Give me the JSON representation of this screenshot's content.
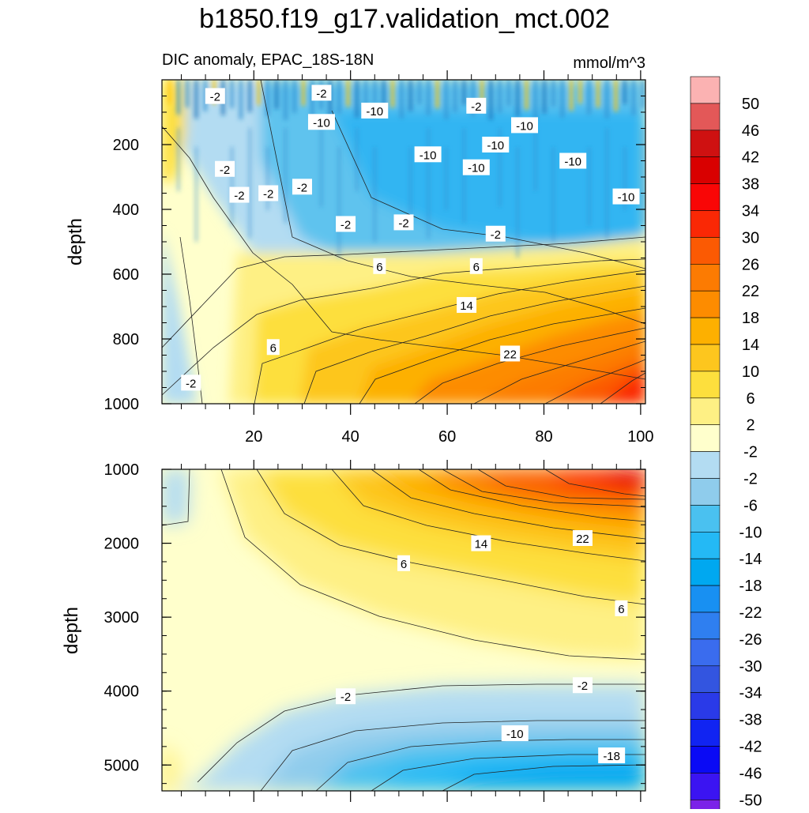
{
  "chart_data": [
    {
      "type": "heatmap",
      "title": "b1850.f19_g17.validation_mct.002",
      "subtitle_left": "DIC anomaly, EPAC_18S-18N",
      "subtitle_right": "mmol/m^3",
      "ylabel": "depth",
      "xlim": [
        1,
        101
      ],
      "ylim": [
        1000,
        0
      ],
      "x_ticks": [
        20,
        40,
        60,
        80,
        100
      ],
      "y_ticks": [
        200,
        400,
        600,
        800,
        1000
      ],
      "contour_labels": [
        {
          "text": "-2",
          "x": 12,
          "depth": 50
        },
        {
          "text": "-2",
          "x": 34,
          "depth": 40
        },
        {
          "text": "-10",
          "x": 34,
          "depth": 130
        },
        {
          "text": "-10",
          "x": 45,
          "depth": 95
        },
        {
          "text": "-2",
          "x": 66,
          "depth": 80
        },
        {
          "text": "-10",
          "x": 56,
          "depth": 230
        },
        {
          "text": "-10",
          "x": 66,
          "depth": 270
        },
        {
          "text": "-10",
          "x": 70,
          "depth": 200
        },
        {
          "text": "-10",
          "x": 76,
          "depth": 140
        },
        {
          "text": "-10",
          "x": 86,
          "depth": 250
        },
        {
          "text": "-10",
          "x": 97,
          "depth": 360
        },
        {
          "text": "-2",
          "x": 14,
          "depth": 275
        },
        {
          "text": "-2",
          "x": 17,
          "depth": 355
        },
        {
          "text": "-2",
          "x": 23,
          "depth": 350
        },
        {
          "text": "-2",
          "x": 30,
          "depth": 330
        },
        {
          "text": "-2",
          "x": 39,
          "depth": 445
        },
        {
          "text": "-2",
          "x": 51,
          "depth": 440
        },
        {
          "text": "-2",
          "x": 70,
          "depth": 475
        },
        {
          "text": "6",
          "x": 46,
          "depth": 575
        },
        {
          "text": "6",
          "x": 66,
          "depth": 575
        },
        {
          "text": "14",
          "x": 64,
          "depth": 695
        },
        {
          "text": "6",
          "x": 24,
          "depth": 825
        },
        {
          "text": "22",
          "x": 73,
          "depth": 845
        },
        {
          "text": "-2",
          "x": 7,
          "depth": 935
        }
      ]
    },
    {
      "type": "heatmap",
      "ylabel": "depth",
      "xlim": [
        1,
        101
      ],
      "ylim": [
        5350,
        1000
      ],
      "y_ticks": [
        1000,
        2000,
        3000,
        4000,
        5000
      ],
      "contour_labels": [
        {
          "text": "14",
          "x": 67,
          "depth": 2000
        },
        {
          "text": "22",
          "x": 88,
          "depth": 1930
        },
        {
          "text": "6",
          "x": 51,
          "depth": 2270
        },
        {
          "text": "6",
          "x": 96,
          "depth": 2880
        },
        {
          "text": "-2",
          "x": 39,
          "depth": 4070
        },
        {
          "text": "-2",
          "x": 88,
          "depth": 3920
        },
        {
          "text": "-10",
          "x": 74,
          "depth": 4570
        },
        {
          "text": "-18",
          "x": 94,
          "depth": 4870
        }
      ]
    }
  ],
  "colorbar": {
    "labels": [
      "50",
      "46",
      "42",
      "38",
      "34",
      "30",
      "26",
      "22",
      "18",
      "14",
      "10",
      "6",
      "2",
      "-2",
      "-2",
      "-6",
      "-10",
      "-14",
      "-18",
      "-22",
      "-26",
      "-30",
      "-34",
      "-38",
      "-42",
      "-46",
      "-50"
    ],
    "colors": [
      "#fbb2b2",
      "#e35858",
      "#cf1111",
      "#d90000",
      "#f90606",
      "#fa2805",
      "#fb5a03",
      "#fc7b02",
      "#fd8c00",
      "#fdb000",
      "#fdc61e",
      "#fddf3d",
      "#fef084",
      "#ffffcc",
      "#b3dcf2",
      "#8fccec",
      "#4ac1f0",
      "#24b9f5",
      "#00a8f0",
      "#1890f2",
      "#2f7ff0",
      "#3a6cee",
      "#3355e0",
      "#2a3ae8",
      "#1124f2",
      "#0a0af5",
      "#3b14f2",
      "#7b22e8"
    ]
  }
}
